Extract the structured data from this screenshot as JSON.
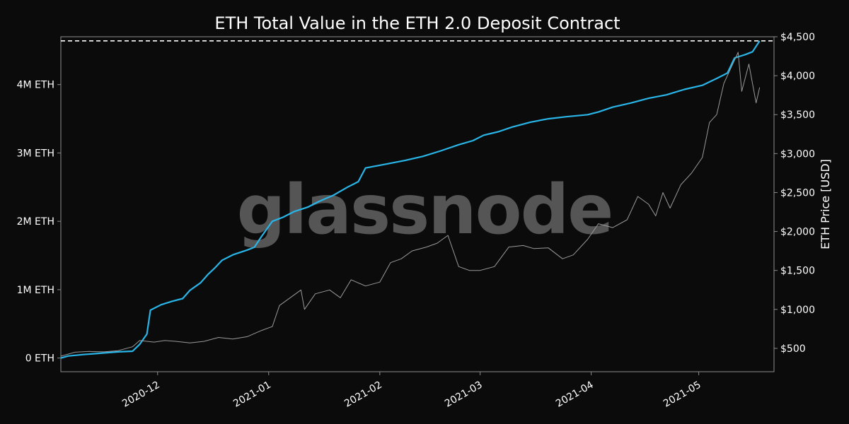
{
  "chart_data": {
    "type": "line",
    "title": "ETH Total Value in the ETH 2.0 Deposit Contract",
    "watermark": "glassnode",
    "x_axis": {
      "type": "date",
      "range": [
        "2020-11-04",
        "2021-05-22"
      ],
      "tick_labels": [
        "2020-12",
        "2021-01",
        "2021-02",
        "2021-03",
        "2021-04",
        "2021-05"
      ],
      "ticks": [
        "2020-12-01",
        "2021-01-01",
        "2021-02-01",
        "2021-03-01",
        "2021-04-01",
        "2021-05-01"
      ]
    },
    "y_left": {
      "range": [
        -200000,
        4700000
      ],
      "ticks": [
        0,
        1000000,
        2000000,
        3000000,
        4000000
      ],
      "tick_labels": [
        "0 ETH",
        "1M ETH",
        "2M ETH",
        "3M ETH",
        "4M ETH"
      ]
    },
    "y_right": {
      "label": "ETH Price [USD]",
      "range": [
        200,
        4500
      ],
      "ticks": [
        500,
        1000,
        1500,
        2000,
        2500,
        3000,
        3500,
        4000,
        4500
      ],
      "tick_labels": [
        "$500",
        "$1,000",
        "$1,500",
        "$2,000",
        "$2,500",
        "$3,000",
        "$3,500",
        "$4,000",
        "$4,500"
      ]
    },
    "reference_line": {
      "value": 4640000,
      "axis": "left",
      "style": "dashed",
      "color": "#ffffff"
    },
    "series": [
      {
        "key": "deposit",
        "axis": "left",
        "color": "#29b5e8",
        "points": [
          [
            "2020-11-04",
            0
          ],
          [
            "2020-11-06",
            30000
          ],
          [
            "2020-11-10",
            50000
          ],
          [
            "2020-11-15",
            70000
          ],
          [
            "2020-11-20",
            90000
          ],
          [
            "2020-11-24",
            100000
          ],
          [
            "2020-11-26",
            200000
          ],
          [
            "2020-11-28",
            350000
          ],
          [
            "2020-11-29",
            700000
          ],
          [
            "2020-12-02",
            780000
          ],
          [
            "2020-12-05",
            830000
          ],
          [
            "2020-12-08",
            870000
          ],
          [
            "2020-12-10",
            990000
          ],
          [
            "2020-12-13",
            1100000
          ],
          [
            "2020-12-15",
            1220000
          ],
          [
            "2020-12-17",
            1320000
          ],
          [
            "2020-12-19",
            1430000
          ],
          [
            "2020-12-22",
            1510000
          ],
          [
            "2020-12-26",
            1580000
          ],
          [
            "2020-12-28",
            1620000
          ],
          [
            "2020-12-30",
            1780000
          ],
          [
            "2021-01-02",
            2000000
          ],
          [
            "2021-01-05",
            2060000
          ],
          [
            "2021-01-08",
            2140000
          ],
          [
            "2021-01-12",
            2210000
          ],
          [
            "2021-01-15",
            2290000
          ],
          [
            "2021-01-19",
            2380000
          ],
          [
            "2021-01-23",
            2500000
          ],
          [
            "2021-01-26",
            2580000
          ],
          [
            "2021-01-28",
            2780000
          ],
          [
            "2021-02-02",
            2830000
          ],
          [
            "2021-02-08",
            2890000
          ],
          [
            "2021-02-13",
            2950000
          ],
          [
            "2021-02-18",
            3030000
          ],
          [
            "2021-02-23",
            3120000
          ],
          [
            "2021-02-27",
            3180000
          ],
          [
            "2021-03-02",
            3260000
          ],
          [
            "2021-03-06",
            3310000
          ],
          [
            "2021-03-10",
            3380000
          ],
          [
            "2021-03-15",
            3450000
          ],
          [
            "2021-03-20",
            3500000
          ],
          [
            "2021-03-25",
            3530000
          ],
          [
            "2021-03-31",
            3560000
          ],
          [
            "2021-04-03",
            3600000
          ],
          [
            "2021-04-07",
            3670000
          ],
          [
            "2021-04-12",
            3730000
          ],
          [
            "2021-04-17",
            3800000
          ],
          [
            "2021-04-22",
            3850000
          ],
          [
            "2021-04-27",
            3930000
          ],
          [
            "2021-05-02",
            3990000
          ],
          [
            "2021-05-06",
            4090000
          ],
          [
            "2021-05-09",
            4170000
          ],
          [
            "2021-05-11",
            4390000
          ],
          [
            "2021-05-14",
            4440000
          ],
          [
            "2021-05-16",
            4480000
          ],
          [
            "2021-05-18",
            4640000
          ]
        ]
      },
      {
        "key": "price",
        "axis": "right",
        "color": "#9a9a9a",
        "points": [
          [
            "2020-11-04",
            400
          ],
          [
            "2020-11-08",
            450
          ],
          [
            "2020-11-12",
            460
          ],
          [
            "2020-11-16",
            455
          ],
          [
            "2020-11-20",
            470
          ],
          [
            "2020-11-24",
            520
          ],
          [
            "2020-11-26",
            600
          ],
          [
            "2020-11-30",
            580
          ],
          [
            "2020-12-03",
            600
          ],
          [
            "2020-12-06",
            590
          ],
          [
            "2020-12-10",
            570
          ],
          [
            "2020-12-14",
            590
          ],
          [
            "2020-12-18",
            640
          ],
          [
            "2020-12-22",
            620
          ],
          [
            "2020-12-26",
            650
          ],
          [
            "2020-12-30",
            730
          ],
          [
            "2021-01-02",
            780
          ],
          [
            "2021-01-04",
            1050
          ],
          [
            "2021-01-07",
            1150
          ],
          [
            "2021-01-10",
            1250
          ],
          [
            "2021-01-11",
            1000
          ],
          [
            "2021-01-14",
            1200
          ],
          [
            "2021-01-18",
            1250
          ],
          [
            "2021-01-21",
            1150
          ],
          [
            "2021-01-24",
            1380
          ],
          [
            "2021-01-28",
            1300
          ],
          [
            "2021-02-01",
            1350
          ],
          [
            "2021-02-04",
            1600
          ],
          [
            "2021-02-07",
            1650
          ],
          [
            "2021-02-10",
            1750
          ],
          [
            "2021-02-14",
            1800
          ],
          [
            "2021-02-17",
            1850
          ],
          [
            "2021-02-20",
            1950
          ],
          [
            "2021-02-23",
            1550
          ],
          [
            "2021-02-26",
            1500
          ],
          [
            "2021-03-01",
            1500
          ],
          [
            "2021-03-05",
            1550
          ],
          [
            "2021-03-09",
            1800
          ],
          [
            "2021-03-13",
            1820
          ],
          [
            "2021-03-16",
            1780
          ],
          [
            "2021-03-20",
            1790
          ],
          [
            "2021-03-24",
            1650
          ],
          [
            "2021-03-27",
            1700
          ],
          [
            "2021-03-31",
            1900
          ],
          [
            "2021-04-03",
            2100
          ],
          [
            "2021-04-07",
            2050
          ],
          [
            "2021-04-11",
            2150
          ],
          [
            "2021-04-14",
            2450
          ],
          [
            "2021-04-17",
            2350
          ],
          [
            "2021-04-19",
            2200
          ],
          [
            "2021-04-21",
            2500
          ],
          [
            "2021-04-23",
            2300
          ],
          [
            "2021-04-26",
            2600
          ],
          [
            "2021-04-29",
            2750
          ],
          [
            "2021-05-02",
            2950
          ],
          [
            "2021-05-04",
            3400
          ],
          [
            "2021-05-06",
            3500
          ],
          [
            "2021-05-08",
            3900
          ],
          [
            "2021-05-10",
            4100
          ],
          [
            "2021-05-12",
            4300
          ],
          [
            "2021-05-13",
            3800
          ],
          [
            "2021-05-15",
            4150
          ],
          [
            "2021-05-17",
            3650
          ],
          [
            "2021-05-18",
            3850
          ]
        ]
      }
    ]
  }
}
